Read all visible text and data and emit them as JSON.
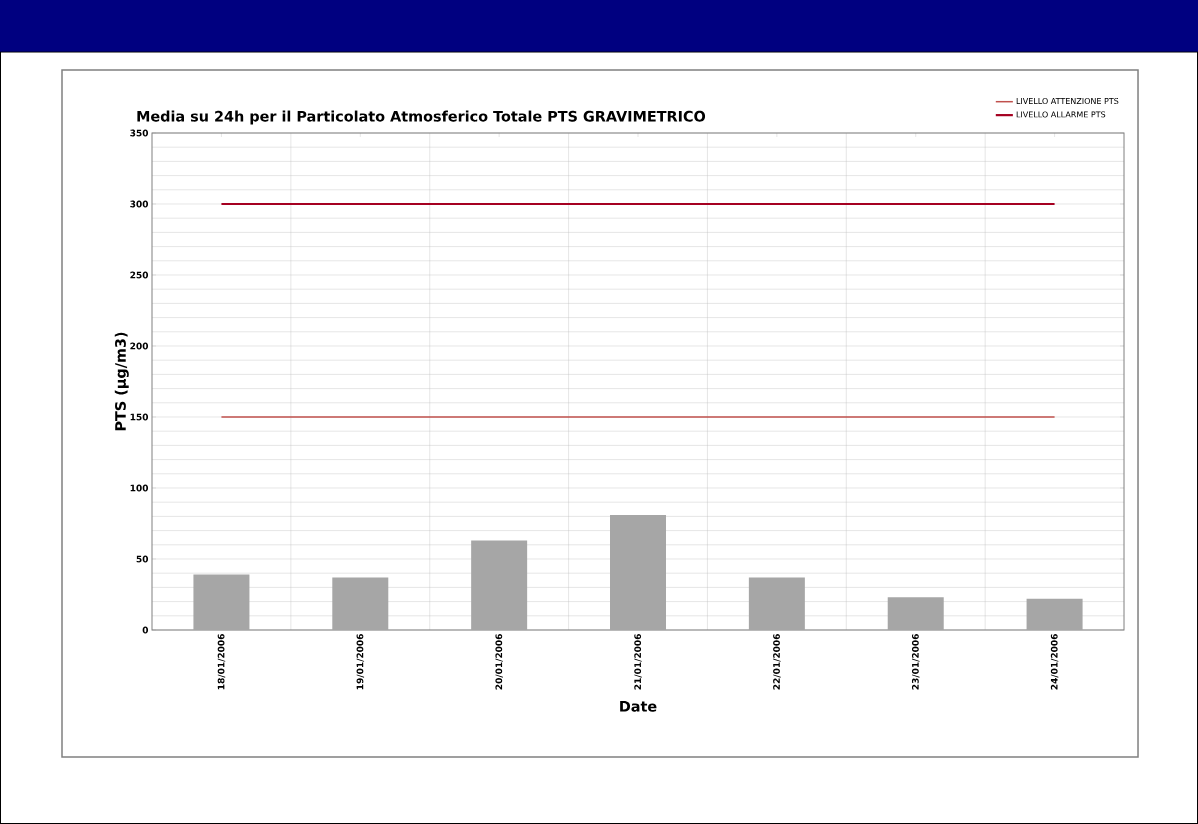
{
  "chart_data": {
    "type": "bar",
    "title": "Media su 24h per il Particolato Atmosferico Totale PTS GRAVIMETRICO",
    "xlabel": "Date",
    "ylabel": "PTS (µg/m3)",
    "categories": [
      "18/01/2006",
      "19/01/2006",
      "20/01/2006",
      "21/01/2006",
      "22/01/2006",
      "23/01/2006",
      "24/01/2006"
    ],
    "series": [
      {
        "color": "#a6a6a6",
        "values": [
          39,
          37,
          63,
          81,
          37,
          23,
          22
        ]
      },
      {
        "type": "line",
        "name": "LIVELLO ATTENZIONE PTS",
        "color": "#c0504d",
        "values": [
          150,
          150,
          150,
          150,
          150,
          150,
          150
        ]
      },
      {
        "type": "line",
        "name": "LIVELLO ALLARME PTS",
        "color": "#a50021",
        "values": [
          300,
          300,
          300,
          300,
          300,
          300,
          300
        ]
      }
    ],
    "ylim": [
      0,
      350
    ],
    "yticks": [
      0,
      50,
      100,
      150,
      200,
      250,
      300,
      350
    ],
    "grid": true,
    "legend": "top right",
    "marker": "none",
    "line_style": "solid"
  }
}
